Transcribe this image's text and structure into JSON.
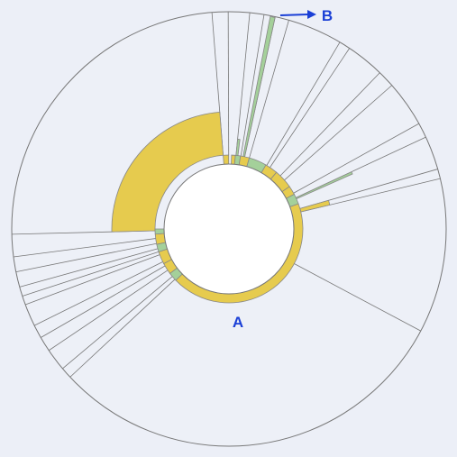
{
  "annotations": {
    "a": "A",
    "b": "B"
  }
}
